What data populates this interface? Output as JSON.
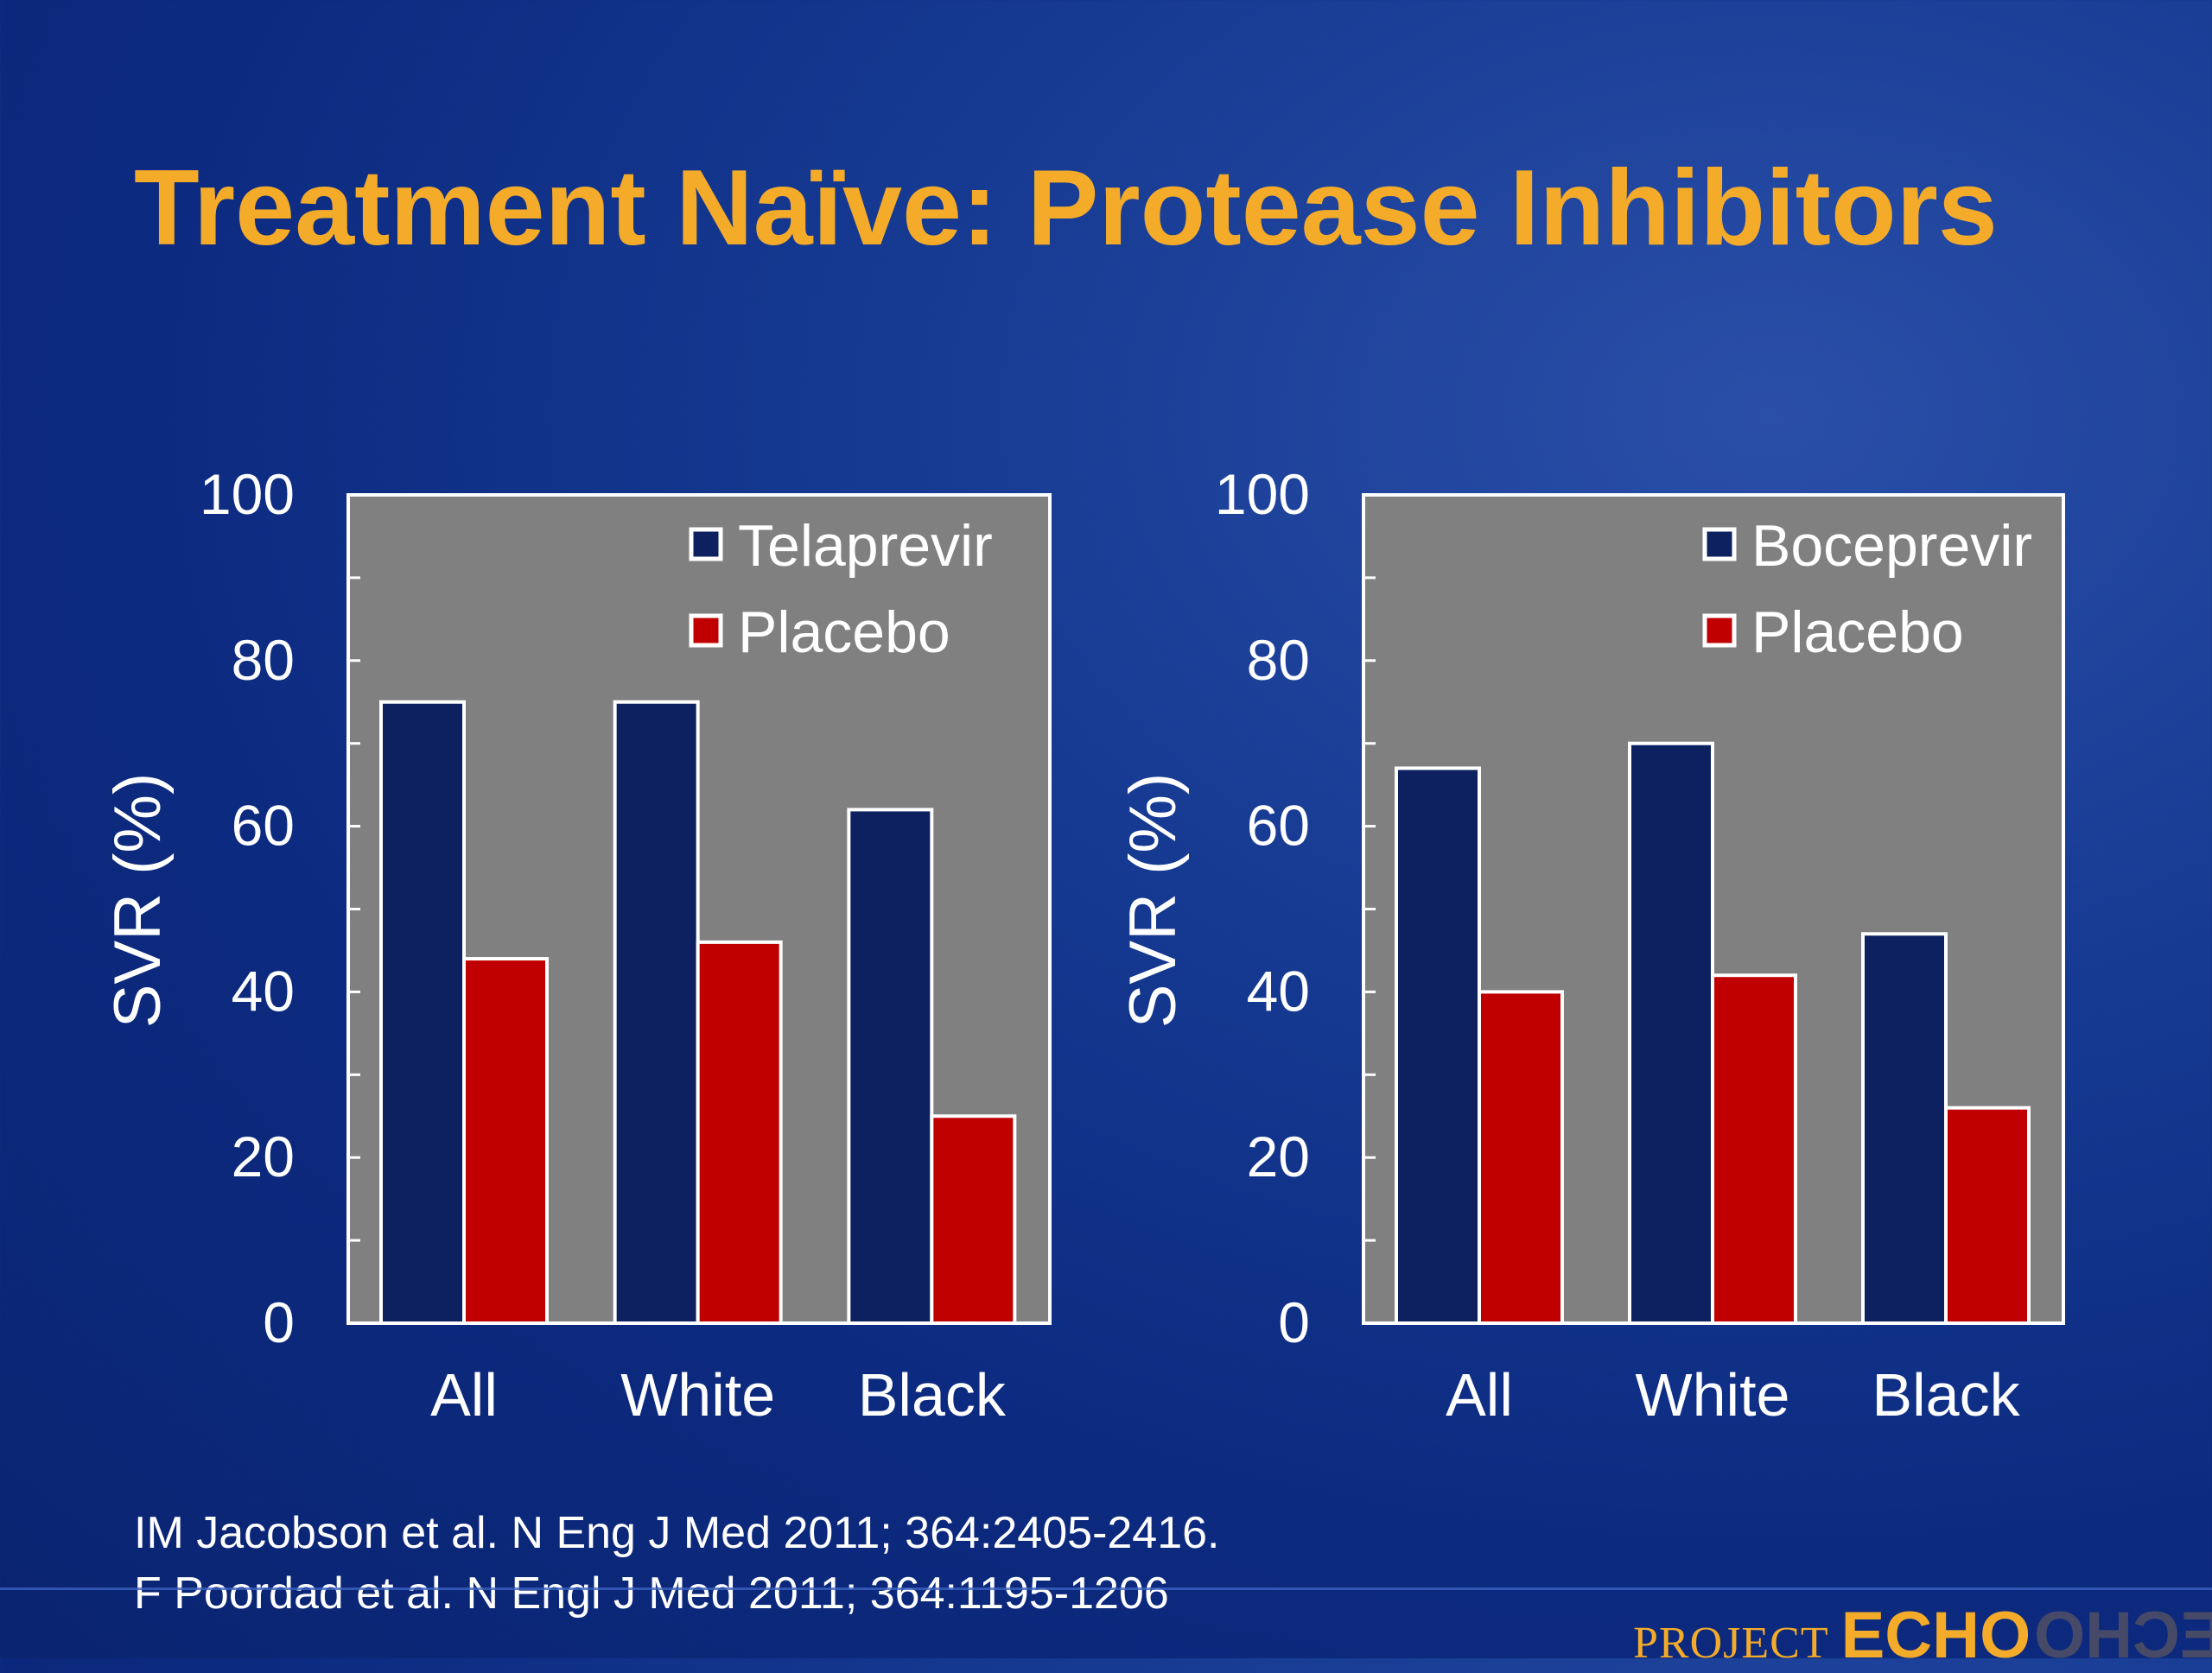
{
  "slide": {
    "title": "Treatment Naïve: Protease Inhibitors"
  },
  "chart_data": [
    {
      "type": "bar",
      "categories": [
        "All",
        "White",
        "Black"
      ],
      "series": [
        {
          "name": "Telaprevir",
          "values": [
            75,
            75,
            62
          ],
          "color": "#0d2161"
        },
        {
          "name": "Placebo",
          "values": [
            44,
            46,
            25
          ],
          "color": "#c00000"
        }
      ],
      "ylabel": "SVR (%)",
      "ylim": [
        0,
        100
      ],
      "yticks": [
        0,
        20,
        40,
        60,
        80,
        100
      ],
      "legend_position": "top-right",
      "plot_background": "#808080"
    },
    {
      "type": "bar",
      "categories": [
        "All",
        "White",
        "Black"
      ],
      "series": [
        {
          "name": "Boceprevir",
          "values": [
            67,
            70,
            47
          ],
          "color": "#0d2161"
        },
        {
          "name": "Placebo",
          "values": [
            40,
            42,
            26
          ],
          "color": "#c00000"
        }
      ],
      "ylabel": "SVR (%)",
      "ylim": [
        0,
        100
      ],
      "yticks": [
        0,
        20,
        40,
        60,
        80,
        100
      ],
      "legend_position": "top-right",
      "plot_background": "#808080"
    }
  ],
  "references": [
    "IM Jacobson et al.  N Eng J Med 2011; 364:2405-2416.",
    "F Poordad et al.  N Engl J Med 2011; 364:1195-1206"
  ],
  "branding": {
    "project": "PROJECT",
    "echo": "ECHO"
  }
}
